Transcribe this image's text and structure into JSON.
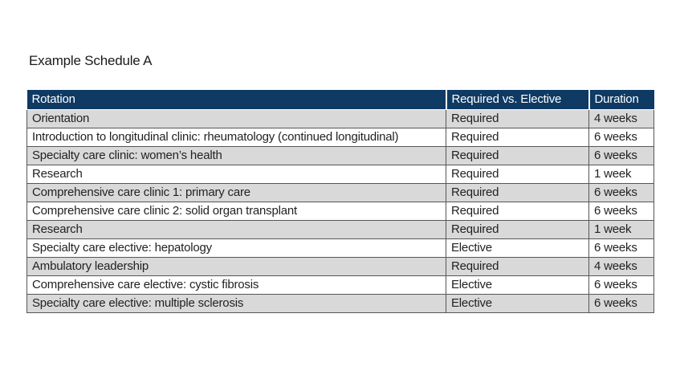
{
  "page": {
    "title": "Example Schedule A"
  },
  "table": {
    "columns": [
      "Rotation",
      "Required vs. Elective",
      "Duration"
    ],
    "rows": [
      [
        "Orientation",
        "Required",
        "4 weeks"
      ],
      [
        "Introduction to longitudinal clinic: rheumatology (continued longitudinal)",
        "Required",
        "6 weeks"
      ],
      [
        "Specialty care clinic: women’s health",
        "Required",
        "6 weeks"
      ],
      [
        "Research",
        "Required",
        "1 week"
      ],
      [
        "Comprehensive care clinic 1: primary care",
        "Required",
        "6 weeks"
      ],
      [
        "Comprehensive care clinic 2: solid organ transplant",
        "Required",
        "6 weeks"
      ],
      [
        "Research",
        "Required",
        "1 week"
      ],
      [
        "Specialty care elective: hepatology",
        "Elective",
        "6 weeks"
      ],
      [
        "Ambulatory leadership",
        "Required",
        "4 weeks"
      ],
      [
        "Comprehensive care elective: cystic fibrosis",
        "Elective",
        "6 weeks"
      ],
      [
        "Specialty care elective: multiple sclerosis",
        "Elective",
        "6 weeks"
      ]
    ],
    "colors": {
      "header_bg": "#0e3a63",
      "header_text": "#ffffff",
      "row_alt_bg": "#d9d9d9",
      "row_bg": "#ffffff",
      "border": "#565656",
      "text": "#231f20"
    }
  }
}
